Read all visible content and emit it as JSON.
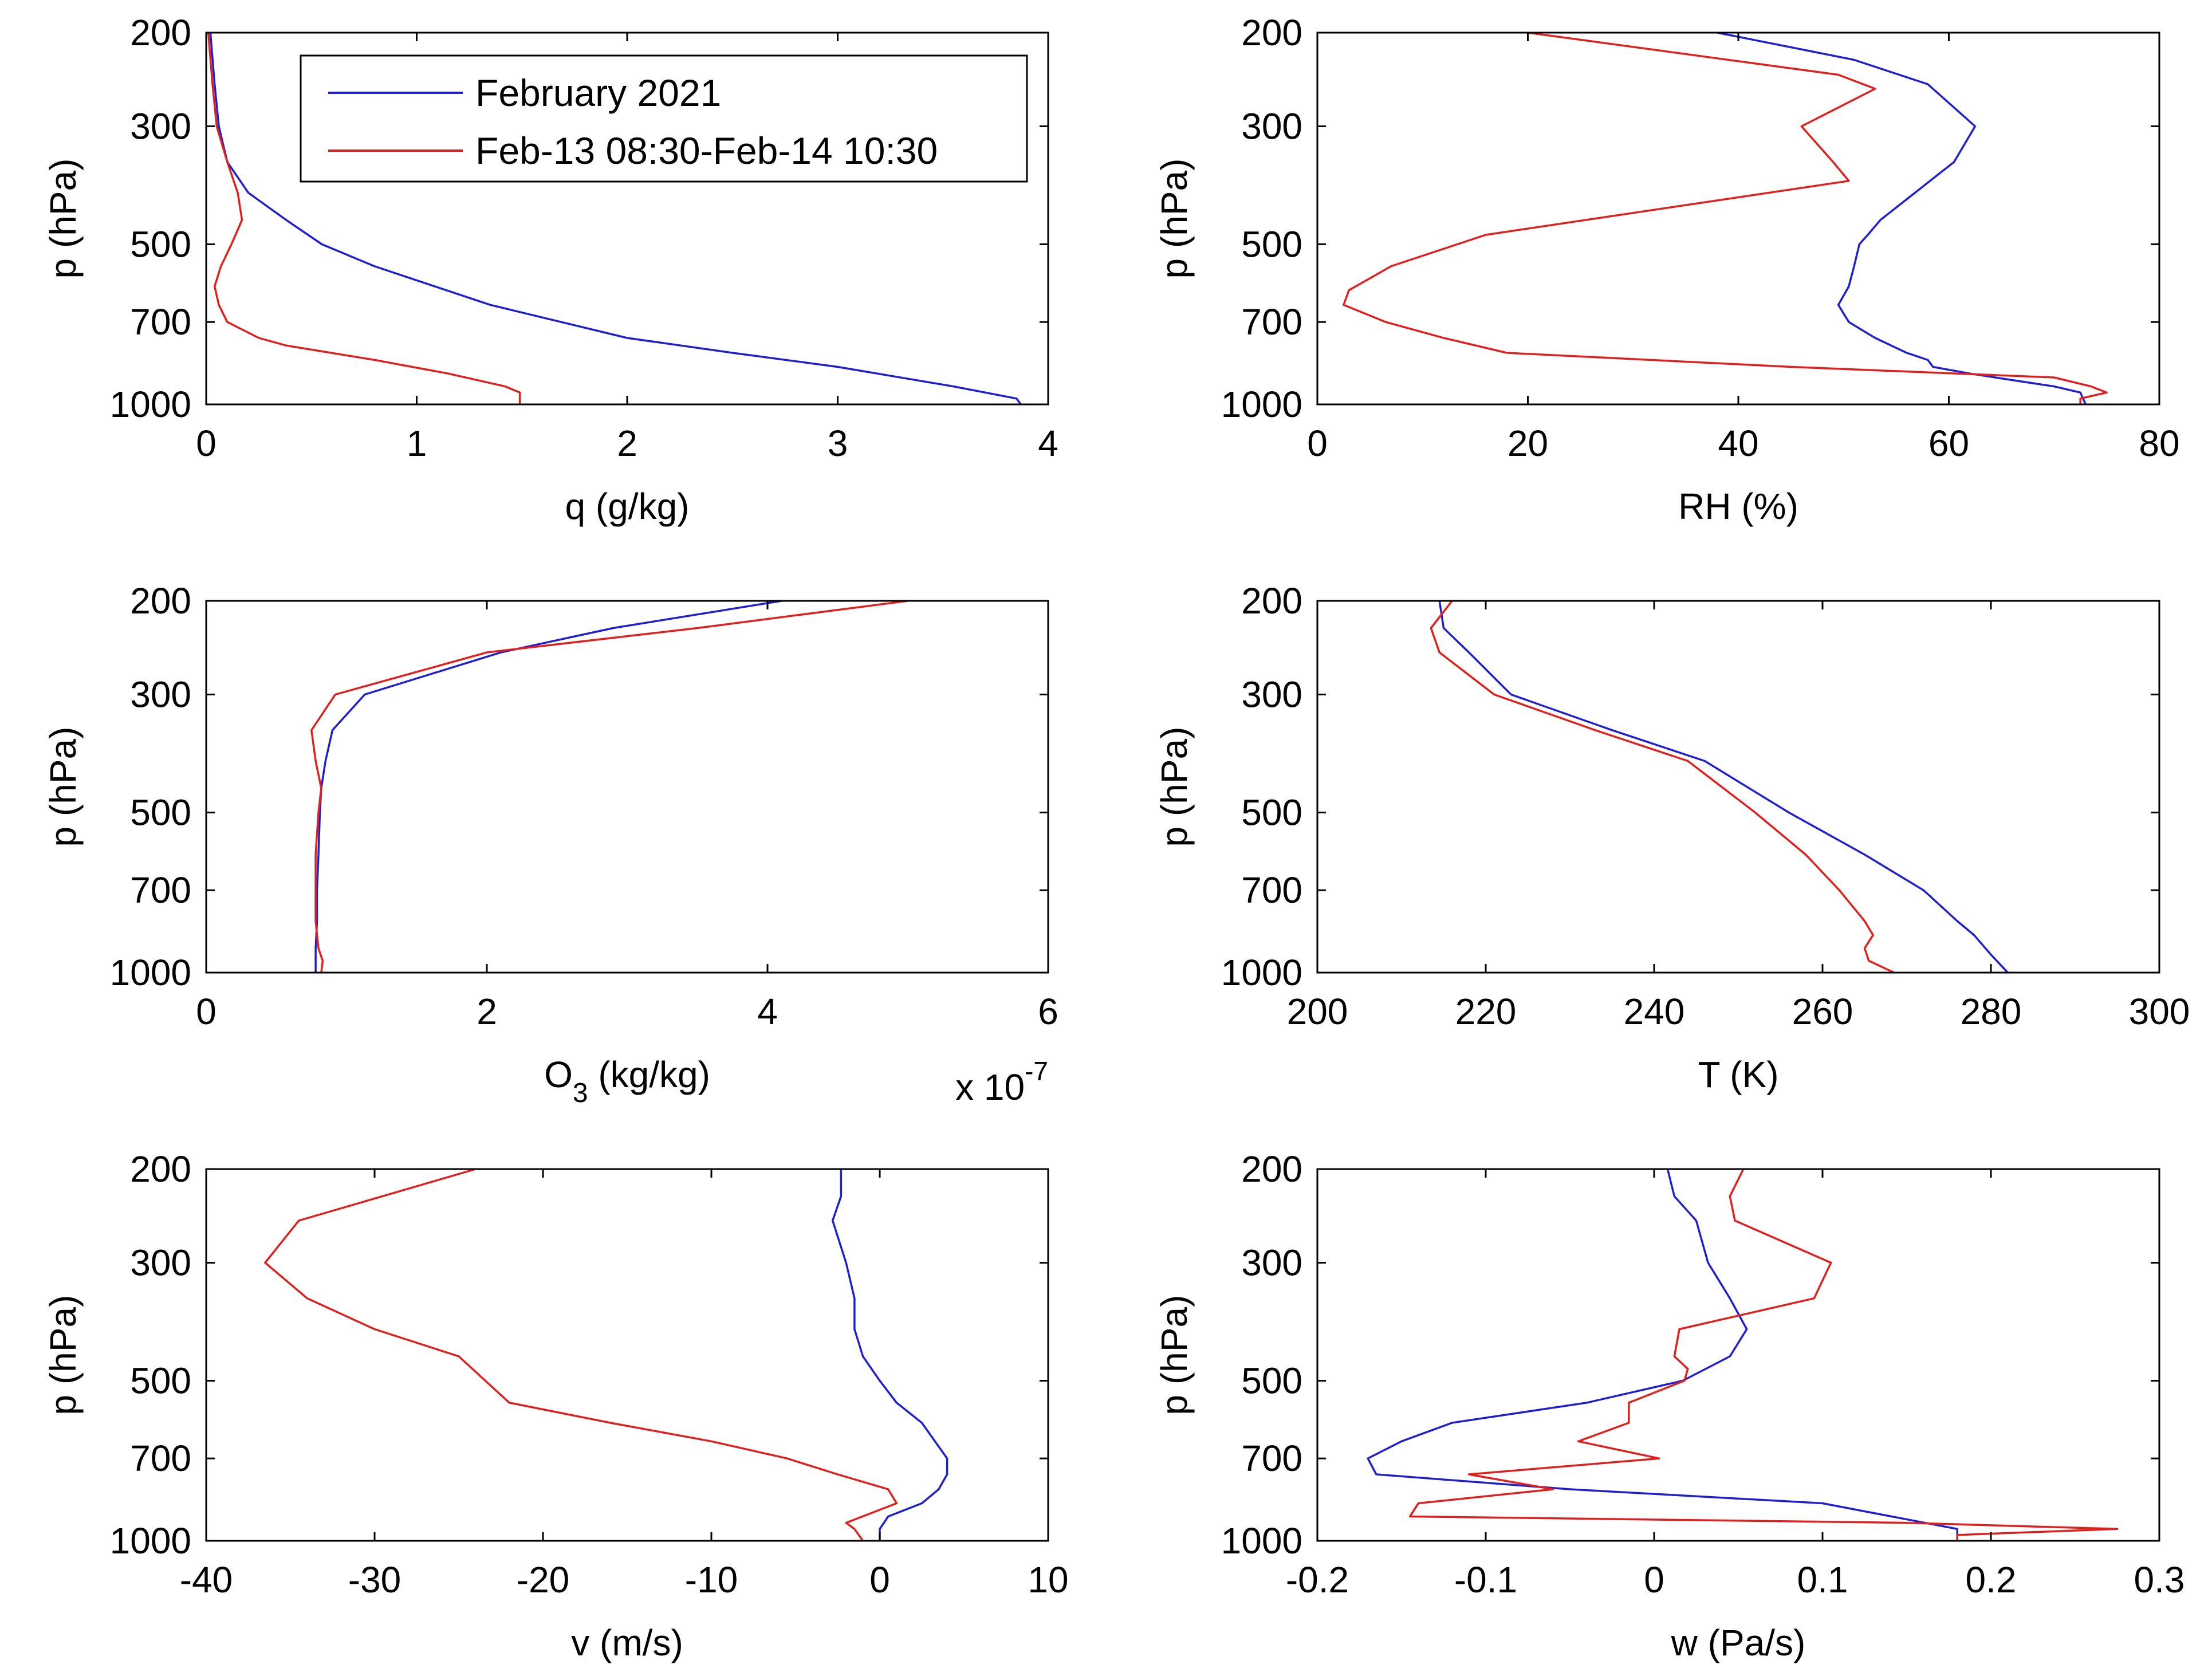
{
  "legend": {
    "entries": [
      {
        "name": "February 2021",
        "color": "#1f1fd0"
      },
      {
        "name": "Feb-13 08:30-Feb-14 10:30",
        "color": "#e0201c"
      }
    ]
  },
  "chart_data": [
    {
      "type": "line",
      "id": "q",
      "xlabel": "q (g/kg)",
      "ylabel": "p (hPa)",
      "xlim": [
        0,
        4
      ],
      "xticks": [
        0,
        1,
        2,
        3,
        4
      ],
      "xtick_labels": [
        "0",
        "1",
        "2",
        "3",
        "4"
      ],
      "ylim": [
        200,
        1000
      ],
      "yticks": [
        200,
        300,
        500,
        700,
        1000
      ],
      "ytick_labels": [
        "200",
        "300",
        "500",
        "700",
        "1000"
      ],
      "yscale": "log",
      "legend": "top-right",
      "series": [
        {
          "name": "February 2021",
          "color": "#1f1fd0",
          "x": [
            0.02,
            0.04,
            0.06,
            0.1,
            0.2,
            0.38,
            0.55,
            0.8,
            1.35,
            2.0,
            2.5,
            3.0,
            3.55,
            3.85,
            3.87
          ],
          "y": [
            200,
            250,
            300,
            350,
            400,
            450,
            500,
            550,
            650,
            750,
            800,
            850,
            925,
            975,
            1000
          ]
        },
        {
          "name": "Feb-13 08:30-Feb-14 10:30",
          "color": "#e0201c",
          "x": [
            0.01,
            0.03,
            0.05,
            0.1,
            0.15,
            0.17,
            0.12,
            0.07,
            0.04,
            0.06,
            0.1,
            0.25,
            0.38,
            0.8,
            1.15,
            1.42,
            1.49,
            1.49
          ],
          "y": [
            200,
            250,
            300,
            350,
            400,
            450,
            500,
            550,
            600,
            650,
            700,
            750,
            775,
            825,
            875,
            925,
            950,
            1000
          ]
        }
      ]
    },
    {
      "type": "line",
      "id": "rh",
      "xlabel": "RH (%)",
      "ylabel": "p (hPa)",
      "xlim": [
        0,
        80
      ],
      "xticks": [
        0,
        20,
        40,
        60,
        80
      ],
      "xtick_labels": [
        "0",
        "20",
        "40",
        "60",
        "80"
      ],
      "ylim": [
        200,
        1000
      ],
      "yticks": [
        200,
        300,
        500,
        700,
        1000
      ],
      "ytick_labels": [
        "200",
        "300",
        "500",
        "700",
        "1000"
      ],
      "yscale": "log",
      "series": [
        {
          "name": "February 2021",
          "color": "#1f1fd0",
          "x": [
            38,
            51,
            58,
            62.5,
            60.5,
            53.5,
            52.5,
            51.5,
            51,
            50.5,
            49.5,
            50.5,
            53,
            56,
            58,
            58.5,
            62,
            66,
            70,
            72.5,
            73
          ],
          "y": [
            200,
            225,
            250,
            300,
            350,
            450,
            475,
            500,
            550,
            600,
            650,
            700,
            750,
            800,
            825,
            850,
            875,
            900,
            925,
            950,
            1000
          ]
        },
        {
          "name": "Feb-13 08:30-Feb-14 10:30",
          "color": "#e0201c",
          "x": [
            20,
            49.5,
            53,
            46,
            49,
            50.5,
            16,
            7,
            3,
            2.5,
            6.5,
            12,
            18,
            45,
            70,
            73.5,
            75,
            72.5,
            72.5
          ],
          "y": [
            200,
            240,
            255,
            300,
            350,
            380,
            480,
            550,
            610,
            650,
            700,
            750,
            800,
            850,
            890,
            925,
            950,
            975,
            1000
          ]
        }
      ]
    },
    {
      "type": "line",
      "id": "o3",
      "xlabel": "O3 (kg/kg)",
      "xlabel_main": "O",
      "xlabel_sub": "3",
      "xlabel_unit": " (kg/kg)",
      "exponent_note": "x 10",
      "exponent_power": "-7",
      "ylabel": "p (hPa)",
      "xlim": [
        0,
        6
      ],
      "xticks": [
        0,
        2,
        4,
        6
      ],
      "xtick_labels": [
        "0",
        "2",
        "4",
        "6"
      ],
      "ylim": [
        200,
        1000
      ],
      "yticks": [
        200,
        300,
        500,
        700,
        1000
      ],
      "ytick_labels": [
        "200",
        "300",
        "500",
        "700",
        "1000"
      ],
      "yscale": "log",
      "series": [
        {
          "name": "February 2021",
          "color": "#1f1fd0",
          "x": [
            4.1,
            2.9,
            2.1,
            1.13,
            0.9,
            0.85,
            0.82,
            0.81,
            0.8,
            0.79,
            0.79,
            0.78,
            0.78
          ],
          "y": [
            200,
            225,
            250,
            300,
            350,
            400,
            450,
            500,
            600,
            700,
            800,
            900,
            1000
          ]
        },
        {
          "name": "Feb-13 08:30-Feb-14 10:30",
          "color": "#e0201c",
          "x": [
            5.0,
            3.5,
            2.0,
            0.92,
            0.75,
            0.78,
            0.82,
            0.8,
            0.78,
            0.78,
            0.78,
            0.8,
            0.83,
            0.82
          ],
          "y": [
            200,
            225,
            250,
            300,
            350,
            400,
            450,
            500,
            600,
            700,
            800,
            900,
            950,
            1000
          ]
        }
      ]
    },
    {
      "type": "line",
      "id": "t",
      "xlabel": "T (K)",
      "ylabel": "p (hPa)",
      "xlim": [
        200,
        300
      ],
      "xticks": [
        200,
        220,
        240,
        260,
        280,
        300
      ],
      "xtick_labels": [
        "200",
        "220",
        "240",
        "260",
        "280",
        "300"
      ],
      "ylim": [
        200,
        1000
      ],
      "yticks": [
        200,
        300,
        500,
        700,
        1000
      ],
      "ytick_labels": [
        "200",
        "300",
        "500",
        "700",
        "1000"
      ],
      "yscale": "log",
      "series": [
        {
          "name": "February 2021",
          "color": "#1f1fd0",
          "x": [
            214.5,
            215,
            218,
            223,
            235,
            246,
            256,
            265,
            272,
            276,
            278,
            280,
            282
          ],
          "y": [
            200,
            225,
            250,
            300,
            350,
            400,
            500,
            600,
            700,
            800,
            850,
            925,
            1000
          ]
        },
        {
          "name": "Feb-13 08:30-Feb-14 10:30",
          "color": "#e0201c",
          "x": [
            216,
            213.5,
            214.5,
            221,
            233,
            244,
            252,
            258,
            262,
            265,
            266,
            265,
            265.5,
            268.5
          ],
          "y": [
            200,
            225,
            250,
            300,
            350,
            400,
            500,
            600,
            700,
            800,
            850,
            900,
            950,
            1000
          ]
        }
      ]
    },
    {
      "type": "line",
      "id": "v",
      "xlabel": "v (m/s)",
      "ylabel": "p (hPa)",
      "xlim": [
        -40,
        10
      ],
      "xticks": [
        -40,
        -30,
        -20,
        -10,
        0,
        10
      ],
      "xtick_labels": [
        "-40",
        "-30",
        "-20",
        "-10",
        "0",
        "10"
      ],
      "ylim": [
        200,
        1000
      ],
      "yticks": [
        200,
        300,
        500,
        700,
        1000
      ],
      "ytick_labels": [
        "200",
        "300",
        "500",
        "700",
        "1000"
      ],
      "yscale": "log",
      "series": [
        {
          "name": "February 2021",
          "color": "#1f1fd0",
          "x": [
            -2.3,
            -2.3,
            -2.8,
            -2.0,
            -1.5,
            -1.5,
            -1.0,
            0.0,
            1.0,
            2.5,
            4.0,
            4.0,
            3.5,
            2.5,
            0.5,
            0.0,
            0.0
          ],
          "y": [
            200,
            225,
            250,
            300,
            350,
            400,
            450,
            500,
            550,
            600,
            700,
            750,
            800,
            850,
            900,
            950,
            1000
          ]
        },
        {
          "name": "Feb-13 08:30-Feb-14 10:30",
          "color": "#e0201c",
          "x": [
            -24,
            -34.5,
            -36.5,
            -34,
            -30,
            -25,
            -22,
            -16,
            -10,
            -5.5,
            -2.5,
            0.5,
            1.0,
            -2.0,
            -1.5,
            -1.0
          ],
          "y": [
            200,
            250,
            300,
            350,
            400,
            450,
            550,
            600,
            650,
            700,
            750,
            800,
            850,
            925,
            950,
            1000
          ]
        }
      ]
    },
    {
      "type": "line",
      "id": "w",
      "xlabel": "w (Pa/s)",
      "ylabel": "p (hPa)",
      "xlim": [
        -0.2,
        0.3
      ],
      "xticks": [
        -0.2,
        -0.1,
        0,
        0.1,
        0.2,
        0.3
      ],
      "xtick_labels": [
        "-0.2",
        "-0.1",
        "0",
        "0.1",
        "0.2",
        "0.3"
      ],
      "ylim": [
        200,
        1000
      ],
      "yticks": [
        200,
        300,
        500,
        700,
        1000
      ],
      "ytick_labels": [
        "200",
        "300",
        "500",
        "700",
        "1000"
      ],
      "yscale": "log",
      "series": [
        {
          "name": "February 2021",
          "color": "#1f1fd0",
          "x": [
            0.008,
            0.012,
            0.025,
            0.032,
            0.045,
            0.055,
            0.045,
            0.017,
            -0.04,
            -0.12,
            -0.15,
            -0.17,
            -0.165,
            -0.05,
            0.1,
            0.18,
            0.18,
            0.18
          ],
          "y": [
            200,
            225,
            250,
            300,
            350,
            400,
            450,
            500,
            550,
            600,
            650,
            700,
            750,
            800,
            850,
            950,
            975,
            1000
          ]
        },
        {
          "name": "Feb-13 08:30-Feb-14 10:30",
          "color": "#e0201c",
          "x": [
            0.053,
            0.045,
            0.048,
            0.105,
            0.095,
            0.015,
            0.012,
            0.02,
            0.018,
            -0.015,
            -0.015,
            -0.045,
            0.003,
            -0.11,
            -0.06,
            -0.14,
            -0.145,
            0.15,
            0.275,
            0.18,
            0.18
          ],
          "y": [
            200,
            225,
            250,
            300,
            350,
            400,
            450,
            475,
            500,
            550,
            600,
            650,
            700,
            750,
            800,
            850,
            900,
            925,
            950,
            975,
            1000
          ]
        }
      ]
    }
  ]
}
